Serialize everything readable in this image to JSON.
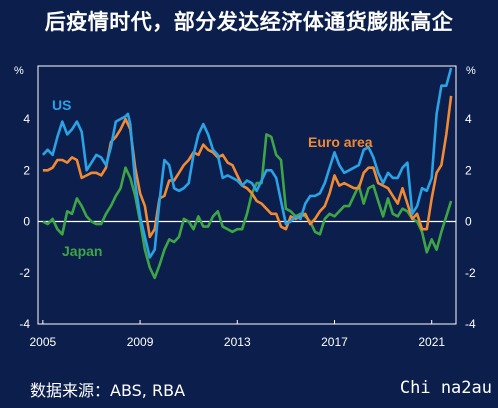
{
  "title": "后疫情时代，部分发达经济体通货膨胀高企",
  "source": "数据来源：ABS, RBA",
  "watermark": "Chi na2au",
  "colors": {
    "background": "#0b1e4c",
    "us": "#29a3e6",
    "euro": "#f08a34",
    "japan": "#3ea546"
  },
  "chart_data": {
    "type": "line",
    "title": "",
    "xlabel": "",
    "ylabel_left": "%",
    "ylabel_right": "%",
    "ylim": [
      -4,
      5
    ],
    "xlim": [
      2004.8,
      2022.0
    ],
    "y_ticks": [
      -4,
      -2,
      0,
      2,
      4
    ],
    "y_tick_labels": [
      "-4",
      "-2",
      "0",
      "2",
      "4"
    ],
    "x_ticks": [
      2005,
      2009,
      2013,
      2017,
      2021
    ],
    "x_tick_labels": [
      "2005",
      "2009",
      "2013",
      "2017",
      "2021"
    ],
    "grid": false,
    "zero_line": true,
    "series": [
      {
        "name": "US",
        "label_pos": "upper-left",
        "points": [
          [
            2005.0,
            2.6
          ],
          [
            2005.2,
            2.8
          ],
          [
            2005.4,
            2.6
          ],
          [
            2005.6,
            3.3
          ],
          [
            2005.8,
            3.9
          ],
          [
            2006.0,
            3.4
          ],
          [
            2006.2,
            3.6
          ],
          [
            2006.4,
            3.9
          ],
          [
            2006.6,
            3.5
          ],
          [
            2006.8,
            2.0
          ],
          [
            2007.0,
            2.3
          ],
          [
            2007.2,
            2.6
          ],
          [
            2007.4,
            2.5
          ],
          [
            2007.6,
            2.2
          ],
          [
            2007.8,
            2.9
          ],
          [
            2008.0,
            3.9
          ],
          [
            2008.2,
            4.0
          ],
          [
            2008.4,
            4.1
          ],
          [
            2008.5,
            4.2
          ],
          [
            2008.6,
            3.8
          ],
          [
            2008.8,
            1.5
          ],
          [
            2009.0,
            0.2
          ],
          [
            2009.2,
            -0.6
          ],
          [
            2009.4,
            -1.4
          ],
          [
            2009.6,
            -1.1
          ],
          [
            2009.8,
            0.8
          ],
          [
            2010.0,
            2.4
          ],
          [
            2010.2,
            2.2
          ],
          [
            2010.4,
            1.3
          ],
          [
            2010.6,
            1.2
          ],
          [
            2010.8,
            1.3
          ],
          [
            2011.0,
            1.5
          ],
          [
            2011.2,
            2.6
          ],
          [
            2011.4,
            3.4
          ],
          [
            2011.6,
            3.8
          ],
          [
            2011.8,
            3.4
          ],
          [
            2012.0,
            2.8
          ],
          [
            2012.2,
            2.6
          ],
          [
            2012.4,
            1.7
          ],
          [
            2012.6,
            1.8
          ],
          [
            2012.8,
            1.7
          ],
          [
            2013.0,
            1.6
          ],
          [
            2013.2,
            1.4
          ],
          [
            2013.4,
            1.6
          ],
          [
            2013.6,
            1.5
          ],
          [
            2013.8,
            1.2
          ],
          [
            2014.0,
            1.6
          ],
          [
            2014.2,
            2.0
          ],
          [
            2014.4,
            2.0
          ],
          [
            2014.6,
            1.7
          ],
          [
            2014.8,
            0.8
          ],
          [
            2015.0,
            -0.1
          ],
          [
            2015.2,
            0.0
          ],
          [
            2015.4,
            0.2
          ],
          [
            2015.6,
            0.1
          ],
          [
            2015.8,
            0.7
          ],
          [
            2016.0,
            1.0
          ],
          [
            2016.2,
            1.0
          ],
          [
            2016.4,
            1.1
          ],
          [
            2016.6,
            1.5
          ],
          [
            2016.8,
            2.1
          ],
          [
            2017.0,
            2.7
          ],
          [
            2017.2,
            2.2
          ],
          [
            2017.4,
            1.9
          ],
          [
            2017.6,
            2.0
          ],
          [
            2017.8,
            2.1
          ],
          [
            2018.0,
            2.2
          ],
          [
            2018.2,
            2.8
          ],
          [
            2018.4,
            2.9
          ],
          [
            2018.6,
            2.5
          ],
          [
            2018.8,
            1.9
          ],
          [
            2019.0,
            1.5
          ],
          [
            2019.2,
            1.9
          ],
          [
            2019.4,
            1.7
          ],
          [
            2019.6,
            1.7
          ],
          [
            2019.8,
            2.1
          ],
          [
            2020.0,
            2.3
          ],
          [
            2020.2,
            0.3
          ],
          [
            2020.4,
            0.6
          ],
          [
            2020.6,
            1.3
          ],
          [
            2020.8,
            1.2
          ],
          [
            2021.0,
            1.7
          ],
          [
            2021.2,
            4.2
          ],
          [
            2021.4,
            5.3
          ],
          [
            2021.6,
            5.3
          ],
          [
            2021.8,
            6.2
          ]
        ]
      },
      {
        "name": "Euro area",
        "label_pos": "upper-right",
        "points": [
          [
            2005.0,
            2.0
          ],
          [
            2005.2,
            2.0
          ],
          [
            2005.4,
            2.1
          ],
          [
            2005.6,
            2.4
          ],
          [
            2005.8,
            2.4
          ],
          [
            2006.0,
            2.3
          ],
          [
            2006.2,
            2.5
          ],
          [
            2006.4,
            2.4
          ],
          [
            2006.6,
            1.7
          ],
          [
            2006.8,
            1.8
          ],
          [
            2007.0,
            1.9
          ],
          [
            2007.2,
            1.9
          ],
          [
            2007.4,
            1.8
          ],
          [
            2007.6,
            2.1
          ],
          [
            2007.8,
            3.1
          ],
          [
            2008.0,
            3.3
          ],
          [
            2008.2,
            3.6
          ],
          [
            2008.4,
            4.0
          ],
          [
            2008.6,
            3.6
          ],
          [
            2008.8,
            2.1
          ],
          [
            2009.0,
            1.1
          ],
          [
            2009.2,
            0.6
          ],
          [
            2009.4,
            -0.6
          ],
          [
            2009.6,
            -0.3
          ],
          [
            2009.8,
            0.9
          ],
          [
            2010.0,
            1.0
          ],
          [
            2010.2,
            1.6
          ],
          [
            2010.4,
            1.6
          ],
          [
            2010.6,
            1.9
          ],
          [
            2010.8,
            2.2
          ],
          [
            2011.0,
            2.4
          ],
          [
            2011.2,
            2.7
          ],
          [
            2011.4,
            2.6
          ],
          [
            2011.6,
            3.0
          ],
          [
            2011.8,
            2.8
          ],
          [
            2012.0,
            2.7
          ],
          [
            2012.2,
            2.5
          ],
          [
            2012.4,
            2.6
          ],
          [
            2012.6,
            2.3
          ],
          [
            2012.8,
            2.2
          ],
          [
            2013.0,
            1.8
          ],
          [
            2013.2,
            1.4
          ],
          [
            2013.4,
            1.3
          ],
          [
            2013.6,
            1.1
          ],
          [
            2013.8,
            0.8
          ],
          [
            2014.0,
            0.7
          ],
          [
            2014.2,
            0.5
          ],
          [
            2014.4,
            0.3
          ],
          [
            2014.6,
            0.3
          ],
          [
            2014.8,
            -0.2
          ],
          [
            2015.0,
            -0.3
          ],
          [
            2015.2,
            0.2
          ],
          [
            2015.4,
            0.1
          ],
          [
            2015.6,
            0.2
          ],
          [
            2015.8,
            0.3
          ],
          [
            2016.0,
            -0.1
          ],
          [
            2016.2,
            0.1
          ],
          [
            2016.4,
            0.4
          ],
          [
            2016.6,
            0.6
          ],
          [
            2016.8,
            1.1
          ],
          [
            2017.0,
            1.8
          ],
          [
            2017.2,
            1.4
          ],
          [
            2017.4,
            1.5
          ],
          [
            2017.6,
            1.4
          ],
          [
            2017.8,
            1.3
          ],
          [
            2018.0,
            1.3
          ],
          [
            2018.2,
            1.9
          ],
          [
            2018.4,
            2.1
          ],
          [
            2018.6,
            2.1
          ],
          [
            2018.8,
            1.5
          ],
          [
            2019.0,
            1.4
          ],
          [
            2019.2,
            1.3
          ],
          [
            2019.4,
            1.0
          ],
          [
            2019.6,
            0.7
          ],
          [
            2019.8,
            1.3
          ],
          [
            2020.0,
            0.7
          ],
          [
            2020.2,
            0.1
          ],
          [
            2020.4,
            0.3
          ],
          [
            2020.6,
            -0.3
          ],
          [
            2020.8,
            -0.3
          ],
          [
            2021.0,
            0.9
          ],
          [
            2021.2,
            1.9
          ],
          [
            2021.4,
            2.2
          ],
          [
            2021.6,
            3.4
          ],
          [
            2021.8,
            4.9
          ]
        ]
      },
      {
        "name": "Japan",
        "label_pos": "lower-left",
        "points": [
          [
            2005.0,
            0.0
          ],
          [
            2005.2,
            -0.1
          ],
          [
            2005.4,
            0.1
          ],
          [
            2005.6,
            -0.3
          ],
          [
            2005.8,
            -0.5
          ],
          [
            2006.0,
            0.4
          ],
          [
            2006.2,
            0.3
          ],
          [
            2006.4,
            0.9
          ],
          [
            2006.6,
            0.6
          ],
          [
            2006.8,
            0.2
          ],
          [
            2007.0,
            0.0
          ],
          [
            2007.2,
            -0.1
          ],
          [
            2007.4,
            -0.1
          ],
          [
            2007.6,
            0.3
          ],
          [
            2007.8,
            0.6
          ],
          [
            2008.0,
            1.0
          ],
          [
            2008.2,
            1.3
          ],
          [
            2008.4,
            2.1
          ],
          [
            2008.6,
            1.7
          ],
          [
            2008.8,
            1.0
          ],
          [
            2009.0,
            0.0
          ],
          [
            2009.2,
            -1.1
          ],
          [
            2009.4,
            -1.8
          ],
          [
            2009.6,
            -2.2
          ],
          [
            2009.8,
            -1.7
          ],
          [
            2010.0,
            -1.1
          ],
          [
            2010.2,
            -0.7
          ],
          [
            2010.4,
            -0.8
          ],
          [
            2010.6,
            -0.6
          ],
          [
            2010.8,
            0.1
          ],
          [
            2011.0,
            0.0
          ],
          [
            2011.2,
            -0.3
          ],
          [
            2011.4,
            0.2
          ],
          [
            2011.6,
            -0.2
          ],
          [
            2011.8,
            -0.2
          ],
          [
            2012.0,
            0.2
          ],
          [
            2012.2,
            0.4
          ],
          [
            2012.4,
            -0.2
          ],
          [
            2012.6,
            -0.3
          ],
          [
            2012.8,
            -0.4
          ],
          [
            2013.0,
            -0.3
          ],
          [
            2013.2,
            -0.3
          ],
          [
            2013.4,
            0.3
          ],
          [
            2013.6,
            1.1
          ],
          [
            2013.8,
            1.5
          ],
          [
            2014.0,
            1.5
          ],
          [
            2014.2,
            3.4
          ],
          [
            2014.4,
            3.3
          ],
          [
            2014.6,
            2.6
          ],
          [
            2014.8,
            2.4
          ],
          [
            2015.0,
            0.5
          ],
          [
            2015.2,
            0.4
          ],
          [
            2015.4,
            0.2
          ],
          [
            2015.6,
            0.3
          ],
          [
            2015.8,
            0.2
          ],
          [
            2016.0,
            0.0
          ],
          [
            2016.2,
            -0.4
          ],
          [
            2016.4,
            -0.5
          ],
          [
            2016.6,
            0.1
          ],
          [
            2016.8,
            0.3
          ],
          [
            2017.0,
            0.2
          ],
          [
            2017.2,
            0.4
          ],
          [
            2017.4,
            0.6
          ],
          [
            2017.6,
            0.6
          ],
          [
            2017.8,
            1.0
          ],
          [
            2018.0,
            1.4
          ],
          [
            2018.2,
            0.7
          ],
          [
            2018.4,
            1.3
          ],
          [
            2018.6,
            1.4
          ],
          [
            2018.8,
            0.8
          ],
          [
            2019.0,
            0.2
          ],
          [
            2019.2,
            0.9
          ],
          [
            2019.4,
            0.3
          ],
          [
            2019.6,
            0.2
          ],
          [
            2019.8,
            0.5
          ],
          [
            2020.0,
            0.4
          ],
          [
            2020.2,
            0.1
          ],
          [
            2020.4,
            0.0
          ],
          [
            2020.6,
            -0.4
          ],
          [
            2020.8,
            -1.2
          ],
          [
            2021.0,
            -0.7
          ],
          [
            2021.2,
            -1.1
          ],
          [
            2021.4,
            -0.4
          ],
          [
            2021.6,
            0.2
          ],
          [
            2021.8,
            0.8
          ]
        ]
      }
    ]
  }
}
